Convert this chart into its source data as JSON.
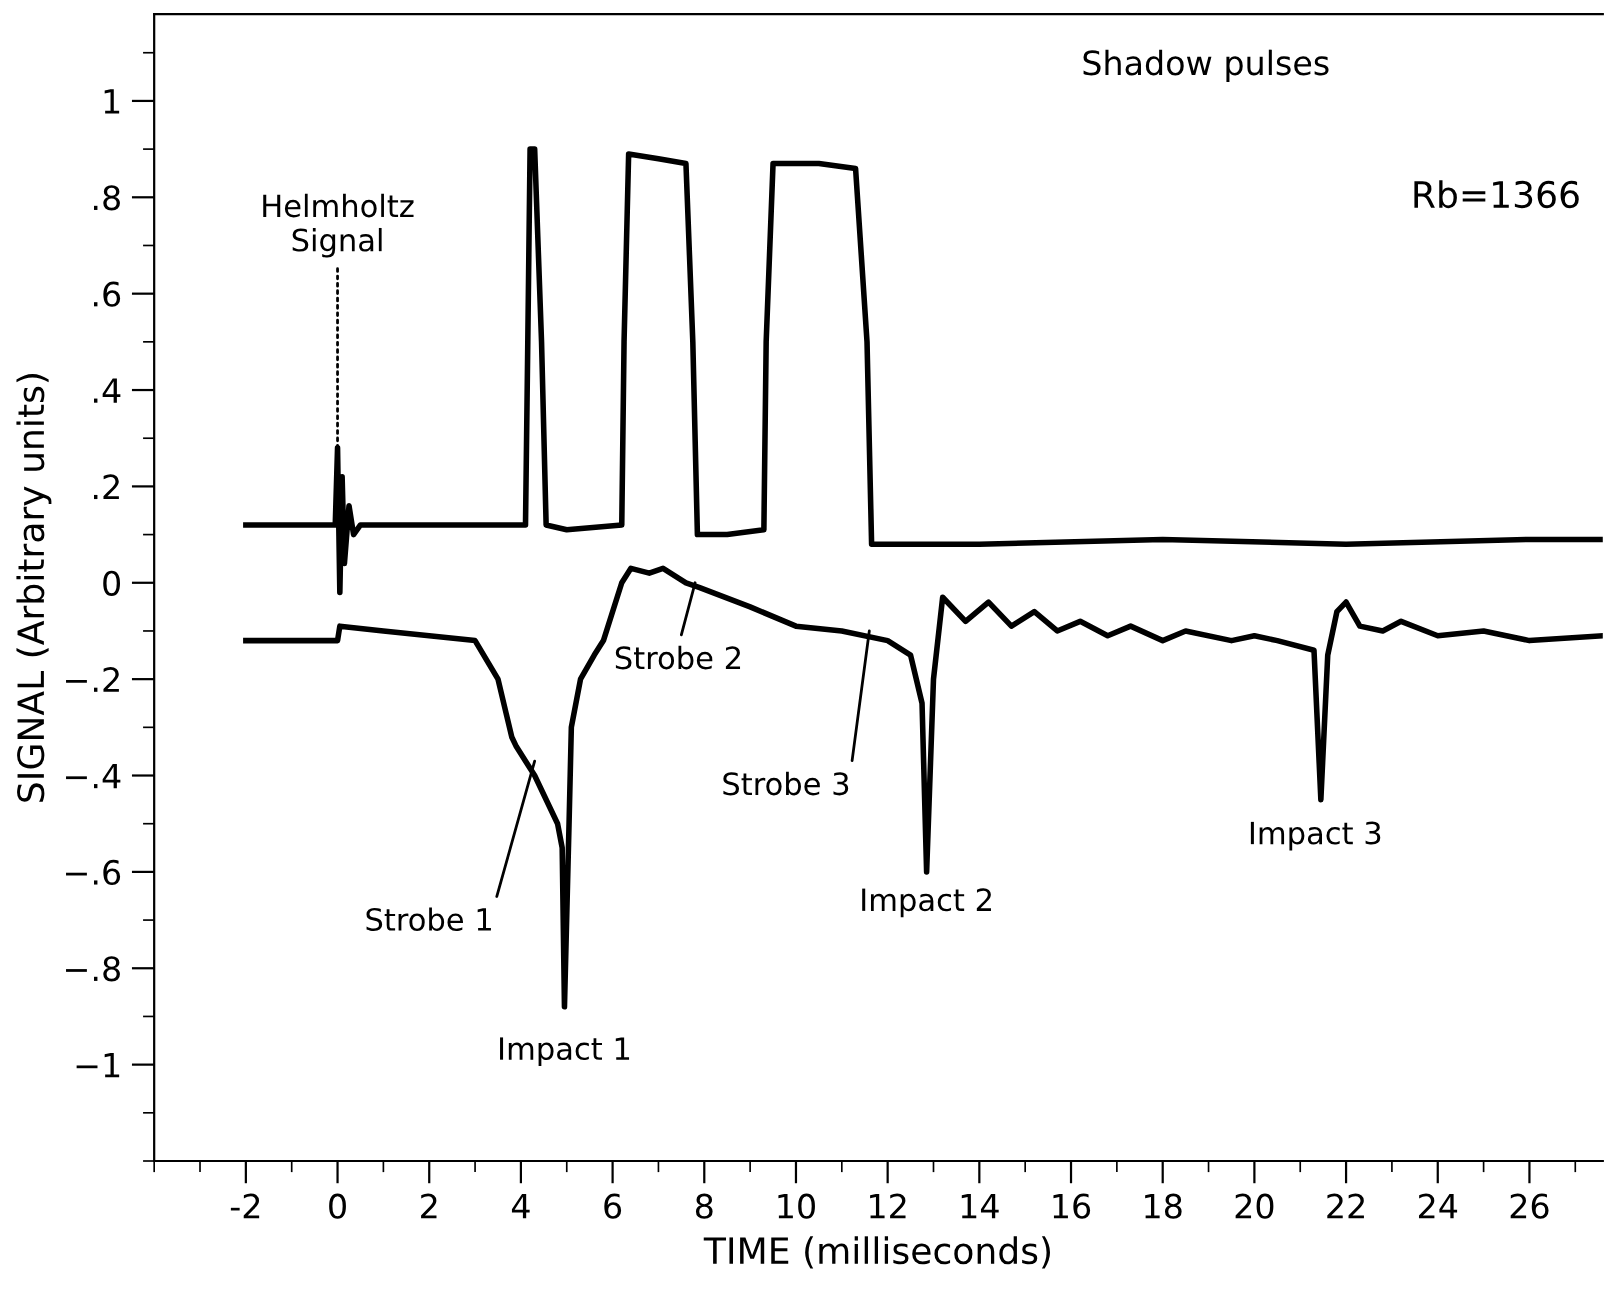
{
  "chart_data": {
    "type": "line",
    "xlabel": "TIME (milliseconds)",
    "ylabel": "SIGNAL (Arbitrary units)",
    "xlim": [
      -4,
      27.6
    ],
    "ylim": [
      -1.2,
      1.18
    ],
    "xticks": [
      -2,
      0,
      2,
      4,
      6,
      8,
      10,
      12,
      14,
      16,
      18,
      20,
      22,
      24,
      26
    ],
    "yticks": [
      {
        "value": 1,
        "label": "1"
      },
      {
        "value": 0.8,
        "label": ".8"
      },
      {
        "value": 0.6,
        "label": ".6"
      },
      {
        "value": 0.4,
        "label": ".4"
      },
      {
        "value": 0.2,
        "label": ".2"
      },
      {
        "value": 0,
        "label": "0"
      },
      {
        "value": -0.2,
        "label": "−.2"
      },
      {
        "value": -0.4,
        "label": "−.4"
      },
      {
        "value": -0.6,
        "label": "−.6"
      },
      {
        "value": -0.8,
        "label": "−.8"
      },
      {
        "value": -1,
        "label": "−1"
      }
    ],
    "grid": false,
    "legend": false,
    "marker": "none",
    "line_style": "solid",
    "series": [
      {
        "color": "#000000",
        "x": [
          -2,
          -1,
          -0.05,
          0,
          0.05,
          0.1,
          0.15,
          0.25,
          0.35,
          0.5,
          1,
          2,
          3,
          4.1,
          4.15,
          4.2,
          4.3,
          4.45,
          4.55,
          5,
          6.2,
          6.25,
          6.35,
          7,
          7.6,
          7.75,
          7.85,
          8.5,
          9.3,
          9.35,
          9.5,
          10.5,
          11.3,
          11.55,
          11.65,
          14,
          18,
          22,
          26,
          27.6
        ],
        "values": [
          0.12,
          0.12,
          0.12,
          0.28,
          -0.02,
          0.22,
          0.04,
          0.16,
          0.1,
          0.12,
          0.12,
          0.12,
          0.12,
          0.12,
          0.5,
          0.9,
          0.9,
          0.5,
          0.12,
          0.11,
          0.12,
          0.5,
          0.89,
          0.88,
          0.87,
          0.5,
          0.1,
          0.1,
          0.11,
          0.5,
          0.87,
          0.87,
          0.86,
          0.5,
          0.08,
          0.08,
          0.09,
          0.08,
          0.09,
          0.09
        ]
      },
      {
        "color": "#000000",
        "x": [
          -2,
          -1,
          0,
          0.05,
          1,
          2,
          3,
          3.5,
          3.8,
          3.9,
          4.3,
          4.8,
          4.9,
          4.95,
          5.05,
          5.1,
          5.3,
          5.6,
          5.8,
          6.2,
          6.4,
          6.8,
          7.1,
          7.6,
          7.9,
          9,
          10,
          11,
          12,
          12.5,
          12.75,
          12.85,
          13,
          13.2,
          13.7,
          14.2,
          14.7,
          15.2,
          15.7,
          16.2,
          16.8,
          17.3,
          18,
          18.5,
          19.5,
          20,
          20.5,
          21.3,
          21.45,
          21.6,
          21.8,
          22.0,
          22.3,
          22.8,
          23.2,
          24,
          25,
          26,
          27.6
        ],
        "values": [
          -0.12,
          -0.12,
          -0.12,
          -0.09,
          -0.1,
          -0.11,
          -0.12,
          -0.2,
          -0.32,
          -0.34,
          -0.4,
          -0.5,
          -0.55,
          -0.88,
          -0.5,
          -0.3,
          -0.2,
          -0.15,
          -0.12,
          0.0,
          0.03,
          0.02,
          0.03,
          0.0,
          -0.01,
          -0.05,
          -0.09,
          -0.1,
          -0.12,
          -0.15,
          -0.25,
          -0.6,
          -0.2,
          -0.03,
          -0.08,
          -0.04,
          -0.09,
          -0.06,
          -0.1,
          -0.08,
          -0.11,
          -0.09,
          -0.12,
          -0.1,
          -0.12,
          -0.11,
          -0.12,
          -0.14,
          -0.45,
          -0.15,
          -0.06,
          -0.04,
          -0.09,
          -0.1,
          -0.08,
          -0.11,
          -0.1,
          -0.12,
          -0.11
        ]
      }
    ],
    "annotations": [
      {
        "text": "Helmholtz\nSignal",
        "x": 0,
        "y": 0.28
      },
      "Shadow pulses",
      {
        "text": "Strobe 1",
        "x": 4.3,
        "y": -0.37
      },
      {
        "text": "Strobe 2",
        "x": 7.8,
        "y": 0.0
      },
      {
        "text": "Strobe 3",
        "x": 11.6,
        "y": -0.1
      },
      {
        "text": "Impact 1",
        "x": 4.95,
        "y": -0.88
      },
      {
        "text": "Impact 2",
        "x": 12.85,
        "y": -0.6
      },
      {
        "text": "Impact 3",
        "x": 21.45,
        "y": -0.45
      },
      "Rb=1366"
    ]
  }
}
